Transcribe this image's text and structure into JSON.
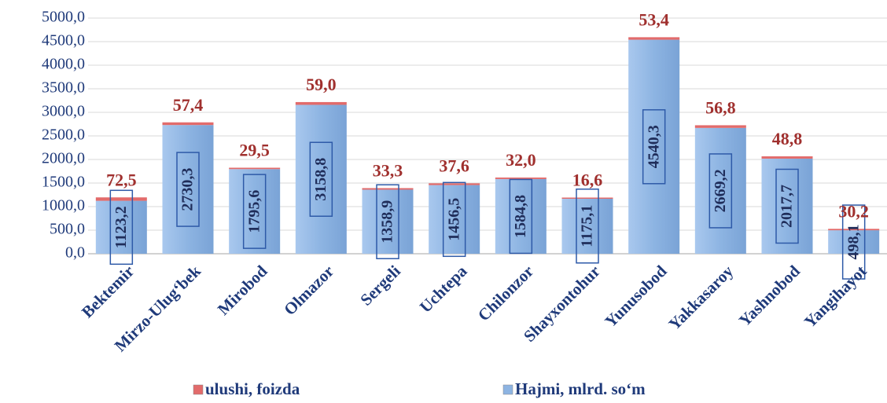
{
  "chart_data": {
    "type": "stacked_bar",
    "categories": [
      "Bektemir",
      "Mirzo-Ulug‘bek",
      "Mirobod",
      "Olmazor",
      "Sergeli",
      "Uchtepa",
      "Chilonzor",
      "Shayxontohur",
      "Yunusobod",
      "Yakkasaroy",
      "Yashnobod",
      "Yangihayot"
    ],
    "series": [
      {
        "name": "Hajmi, mlrd. so‘m",
        "color": "#8db4e2",
        "values": [
          1123.2,
          2730.3,
          1795.6,
          3158.8,
          1358.9,
          1456.5,
          1584.8,
          1175.1,
          4540.3,
          2669.2,
          2017.7,
          498.1
        ],
        "value_labels": [
          "1123,2",
          "2730,3",
          "1795,6",
          "3158,8",
          "1358,9",
          "1456,5",
          "1584,8",
          "1175,1",
          "4540,3",
          "2669,2",
          "2017,7",
          "498,1"
        ]
      },
      {
        "name": "ulushi, foizda",
        "color": "#e26b6b",
        "values": [
          72.5,
          57.4,
          29.5,
          59.0,
          33.3,
          37.6,
          32.0,
          16.6,
          53.4,
          56.8,
          48.8,
          30.2
        ],
        "value_labels": [
          "72,5",
          "57,4",
          "29,5",
          "59,0",
          "33,3",
          "37,6",
          "32,0",
          "16,6",
          "53,4",
          "56,8",
          "48,8",
          "30,2"
        ]
      }
    ],
    "ylim": [
      0,
      5000
    ],
    "yticks": [
      {
        "value": 0,
        "label": "0,0"
      },
      {
        "value": 500,
        "label": "500,0"
      },
      {
        "value": 1000,
        "label": "1000,0"
      },
      {
        "value": 1500,
        "label": "1500,0"
      },
      {
        "value": 2000,
        "label": "2000,0"
      },
      {
        "value": 2500,
        "label": "2500,0"
      },
      {
        "value": 3000,
        "label": "3000,0"
      },
      {
        "value": 3500,
        "label": "3500,0"
      },
      {
        "value": 4000,
        "label": "4000,0"
      },
      {
        "value": 4500,
        "label": "4500,0"
      },
      {
        "value": 5000,
        "label": "5000,0"
      }
    ],
    "grid": true,
    "legend": "bottom"
  }
}
